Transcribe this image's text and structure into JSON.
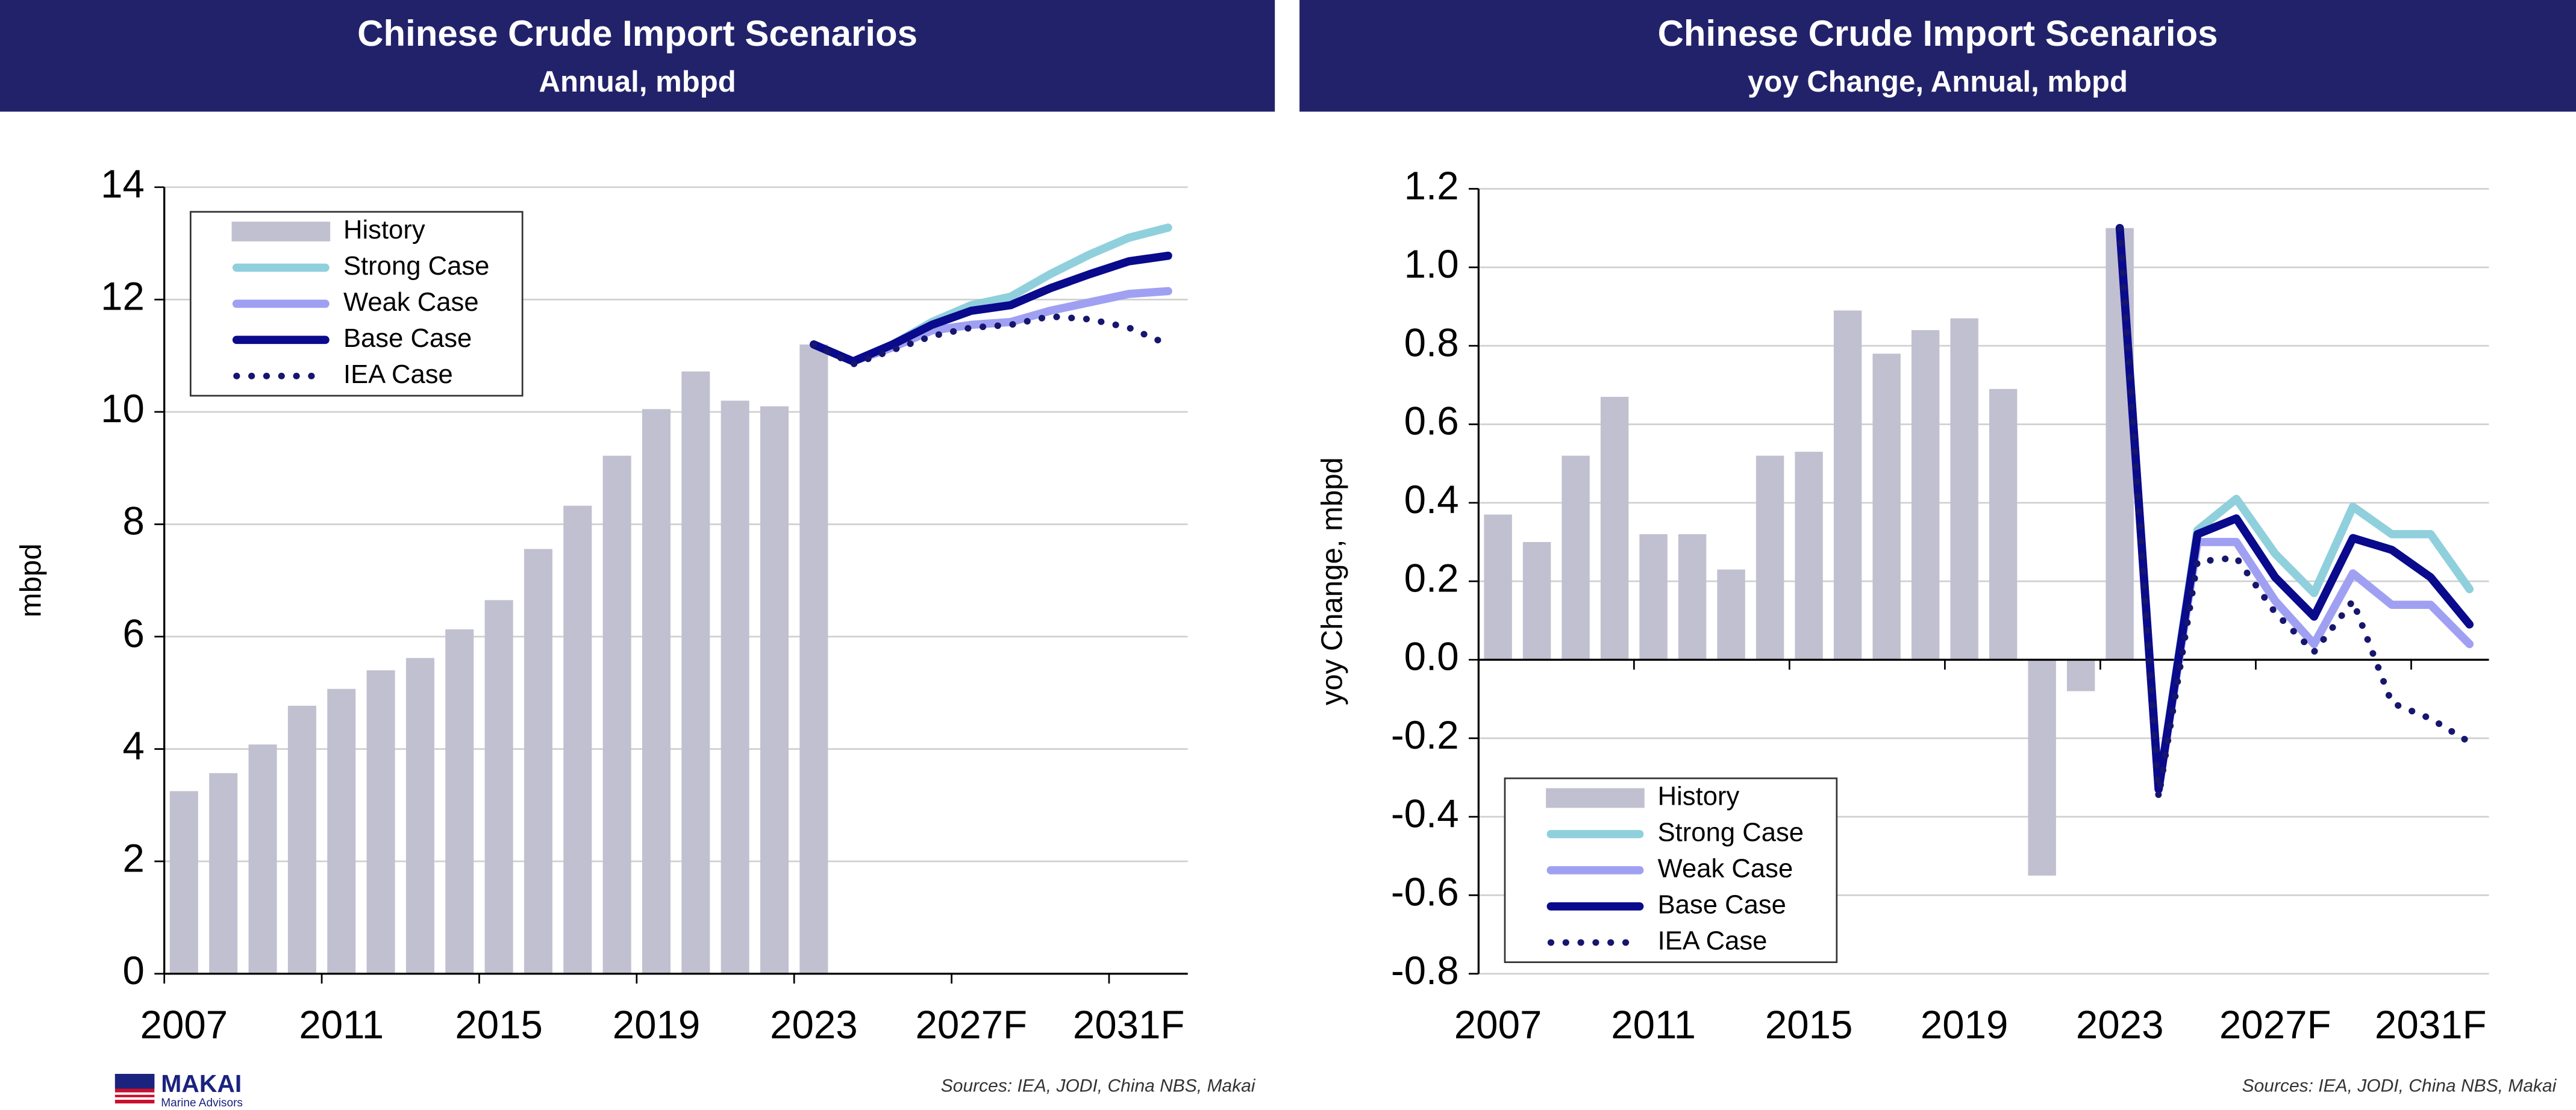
{
  "chart_data": [
    {
      "type": "combo",
      "title": "Chinese Crude Import Scenarios",
      "subtitle": "Annual, mbpd",
      "ylabel": "mbpd",
      "categories": [
        "2007",
        null,
        null,
        null,
        "2011",
        null,
        null,
        null,
        "2015",
        null,
        null,
        null,
        "2019",
        null,
        null,
        null,
        "2023",
        null,
        null,
        null,
        "2027F",
        null,
        null,
        null,
        "2031F",
        null
      ],
      "series": [
        {
          "name": "History",
          "type": "bar",
          "color": "#c1c0d0",
          "values": [
            3.25,
            3.57,
            4.08,
            4.77,
            5.07,
            5.4,
            5.62,
            6.13,
            6.65,
            7.56,
            8.33,
            9.22,
            10.05,
            10.72,
            10.2,
            10.1,
            11.2,
            null,
            null,
            null,
            null,
            null,
            null,
            null,
            null,
            null
          ]
        },
        {
          "name": "Strong Case",
          "type": "line",
          "color": "#8fd0dc",
          "values": [
            null,
            null,
            null,
            null,
            null,
            null,
            null,
            null,
            null,
            null,
            null,
            null,
            null,
            null,
            null,
            null,
            11.2,
            10.9,
            11.2,
            11.6,
            11.9,
            12.05,
            12.45,
            12.8,
            13.1,
            13.28
          ]
        },
        {
          "name": "Weak Case",
          "type": "line",
          "color": "#a0a0f2",
          "values": [
            null,
            null,
            null,
            null,
            null,
            null,
            null,
            null,
            null,
            null,
            null,
            null,
            null,
            null,
            null,
            null,
            11.2,
            10.9,
            11.15,
            11.45,
            11.55,
            11.6,
            11.8,
            11.95,
            12.1,
            12.15
          ]
        },
        {
          "name": "Base Case",
          "type": "line",
          "color": "#0a0a8c",
          "values": [
            null,
            null,
            null,
            null,
            null,
            null,
            null,
            null,
            null,
            null,
            null,
            null,
            null,
            null,
            null,
            null,
            11.2,
            10.9,
            11.2,
            11.55,
            11.8,
            11.9,
            12.2,
            12.45,
            12.68,
            12.78
          ]
        },
        {
          "name": "IEA Case",
          "type": "line",
          "style": "dotted",
          "color": "#16166e",
          "values": [
            null,
            null,
            null,
            null,
            null,
            null,
            null,
            null,
            null,
            null,
            null,
            null,
            null,
            null,
            null,
            null,
            11.2,
            10.85,
            11.1,
            11.35,
            11.5,
            11.55,
            11.7,
            11.65,
            11.5,
            11.2
          ]
        }
      ],
      "ylim": [
        0,
        14
      ],
      "yticks": [
        0,
        2,
        4,
        6,
        8,
        10,
        12,
        14
      ],
      "grid": true,
      "legend": "upper left",
      "source": "Sources: IEA, JODI, China NBS, Makai"
    },
    {
      "type": "combo",
      "title": "Chinese Crude Import Scenarios",
      "subtitle": "yoy Change, Annual, mbpd",
      "ylabel": "yoy Change, mbpd",
      "categories": [
        "2007",
        null,
        null,
        null,
        "2011",
        null,
        null,
        null,
        "2015",
        null,
        null,
        null,
        "2019",
        null,
        null,
        null,
        "2023",
        null,
        null,
        null,
        "2027F",
        null,
        null,
        null,
        "2031F",
        null
      ],
      "series": [
        {
          "name": "History",
          "type": "bar",
          "color": "#c1c0d0",
          "values": [
            0.37,
            0.3,
            0.52,
            0.67,
            0.32,
            0.32,
            0.23,
            0.52,
            0.53,
            0.89,
            0.78,
            0.84,
            0.87,
            0.69,
            -0.55,
            -0.08,
            1.1,
            null,
            null,
            null,
            null,
            null,
            null,
            null,
            null,
            null
          ]
        },
        {
          "name": "Strong Case",
          "type": "line",
          "color": "#8fd0dc",
          "values": [
            null,
            null,
            null,
            null,
            null,
            null,
            null,
            null,
            null,
            null,
            null,
            null,
            null,
            null,
            null,
            null,
            1.1,
            -0.33,
            0.33,
            0.41,
            0.27,
            0.17,
            0.39,
            0.32,
            0.32,
            0.18
          ]
        },
        {
          "name": "Weak Case",
          "type": "line",
          "color": "#a0a0f2",
          "values": [
            null,
            null,
            null,
            null,
            null,
            null,
            null,
            null,
            null,
            null,
            null,
            null,
            null,
            null,
            null,
            null,
            1.1,
            -0.33,
            0.3,
            0.3,
            0.15,
            0.04,
            0.22,
            0.14,
            0.14,
            0.04
          ]
        },
        {
          "name": "Base Case",
          "type": "line",
          "color": "#0a0a8c",
          "values": [
            null,
            null,
            null,
            null,
            null,
            null,
            null,
            null,
            null,
            null,
            null,
            null,
            null,
            null,
            null,
            null,
            1.1,
            -0.33,
            0.32,
            0.36,
            0.21,
            0.11,
            0.31,
            0.28,
            0.21,
            0.09
          ]
        },
        {
          "name": "IEA Case",
          "type": "line",
          "style": "dotted",
          "color": "#16166e",
          "values": [
            null,
            null,
            null,
            null,
            null,
            null,
            null,
            null,
            null,
            null,
            null,
            null,
            null,
            null,
            null,
            null,
            1.1,
            -0.35,
            0.25,
            0.26,
            0.12,
            0.02,
            0.15,
            -0.11,
            -0.15,
            -0.21
          ]
        }
      ],
      "ylim": [
        -0.8,
        1.2
      ],
      "yticks": [
        -0.8,
        -0.6,
        -0.4,
        -0.2,
        {
          "value": 0,
          "label": "0.0"
        },
        0.2,
        0.4,
        0.6,
        0.8,
        {
          "value": 1,
          "label": "1.0"
        },
        1.2
      ],
      "grid": true,
      "legend": "lower left",
      "source": "Sources: IEA, JODI, China NBS, Makai"
    }
  ],
  "logo": {
    "name": "MAKAI",
    "tagline": "Marine Advisors"
  }
}
